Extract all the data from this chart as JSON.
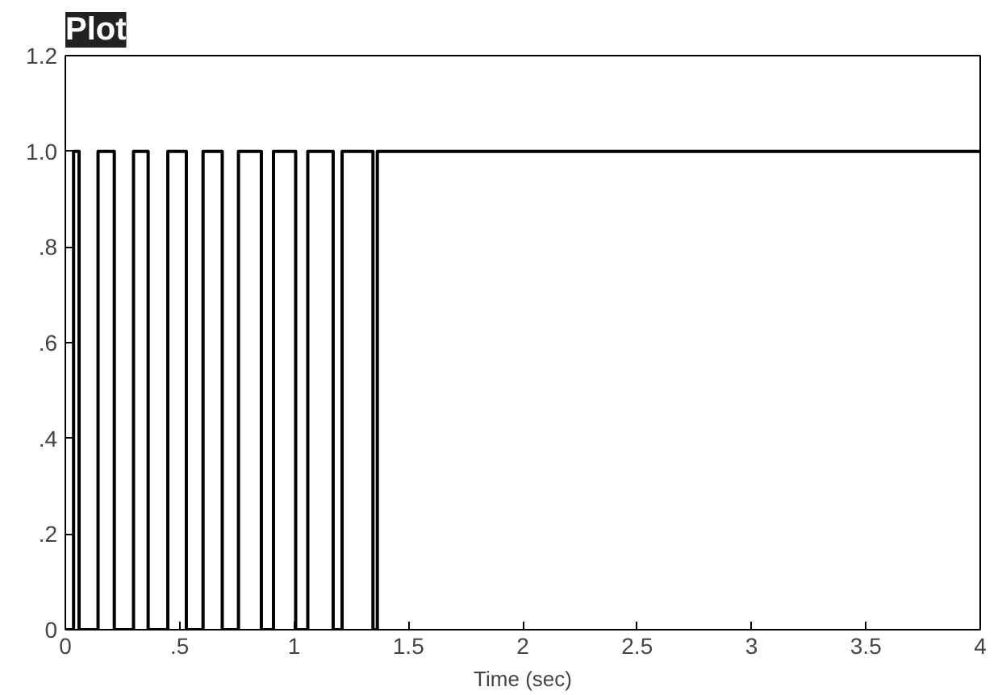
{
  "chart_data": {
    "type": "step",
    "title": "Plot",
    "xlabel": "Time (sec)",
    "x": [
      0,
      0.036,
      0.06,
      0.143,
      0.214,
      0.298,
      0.362,
      0.448,
      0.529,
      0.602,
      0.686,
      0.757,
      0.857,
      0.91,
      1.007,
      1.06,
      1.171,
      1.21,
      1.345,
      1.364,
      4
    ],
    "series": [
      {
        "color": "#000000",
        "values": [
          0,
          1,
          0,
          1,
          0,
          1,
          0,
          1,
          0,
          1,
          0,
          1,
          0,
          1,
          0,
          1,
          0,
          1,
          0,
          1,
          1
        ]
      }
    ],
    "xlim": [
      0,
      4
    ],
    "ylim": [
      0,
      1.2
    ],
    "xticks": [
      0,
      {
        "value": 0.5,
        "label": ".5"
      },
      1,
      1.5,
      2,
      2.5,
      3,
      3.5,
      4
    ],
    "yticks": [
      0,
      {
        "value": 0.2,
        "label": ".2"
      },
      {
        "value": 0.4,
        "label": ".4"
      },
      {
        "value": 0.6,
        "label": ".6"
      },
      {
        "value": 0.8,
        "label": ".8"
      },
      {
        "value": 1,
        "label": "1.0"
      },
      1.2
    ],
    "grid": false
  }
}
